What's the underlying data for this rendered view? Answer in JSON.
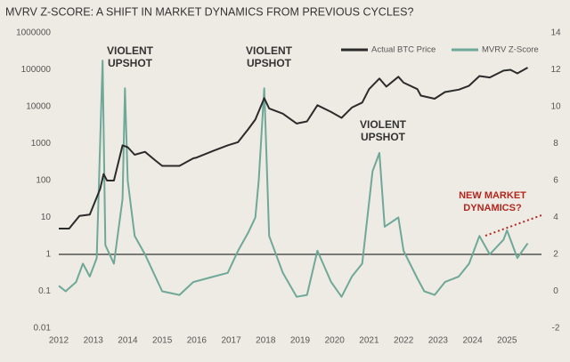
{
  "chart_data": {
    "type": "line",
    "title": "MVRV Z-SCORE: A SHIFT IN MARKET DYNAMICS FROM PREVIOUS CYCLES?",
    "xlim": [
      2012,
      2026
    ],
    "xticks": [
      2012,
      2013,
      2014,
      2015,
      2016,
      2017,
      2018,
      2019,
      2020,
      2021,
      2022,
      2023,
      2024,
      2025
    ],
    "yscale": "log",
    "ylim": [
      0.01,
      1000000
    ],
    "yticks": [
      0.01,
      0.1,
      1,
      10,
      100,
      1000,
      10000,
      100000,
      1000000
    ],
    "y2lim": [
      -2,
      14
    ],
    "y2ticks": [
      -2,
      0,
      2,
      4,
      6,
      8,
      10,
      12,
      14
    ],
    "reference_line": 1,
    "legend": "upper right",
    "annotations": [
      {
        "lines": [
          "VIOLENT",
          "UPSHOT"
        ]
      },
      {
        "lines": [
          "VIOLENT",
          "UPSHOT"
        ]
      },
      {
        "lines": [
          "VIOLENT",
          "UPSHOT"
        ]
      },
      {
        "lines": [
          "NEW MARKET",
          "DYNAMICS?"
        ],
        "color": "#b3261e"
      }
    ],
    "series": [
      {
        "name": "Actual BTC Price",
        "color": "#2b2b2b",
        "x": [
          2012.0,
          2012.3,
          2012.6,
          2012.9,
          2013.2,
          2013.3,
          2013.4,
          2013.6,
          2013.85,
          2014.0,
          2014.2,
          2014.5,
          2014.8,
          2015.0,
          2015.5,
          2015.9,
          2016.0,
          2016.5,
          2016.9,
          2017.2,
          2017.5,
          2017.7,
          2017.96,
          2018.1,
          2018.5,
          2018.9,
          2019.2,
          2019.5,
          2019.9,
          2020.2,
          2020.5,
          2020.8,
          2021.0,
          2021.3,
          2021.5,
          2021.85,
          2022.0,
          2022.4,
          2022.5,
          2022.9,
          2023.2,
          2023.6,
          2023.9,
          2024.2,
          2024.5,
          2024.9,
          2025.1,
          2025.3,
          2025.6
        ],
        "values": [
          5,
          5,
          11,
          12,
          60,
          150,
          100,
          100,
          900,
          800,
          500,
          600,
          350,
          250,
          250,
          400,
          420,
          650,
          900,
          1100,
          2500,
          4500,
          17000,
          9000,
          6500,
          3500,
          4000,
          11000,
          7200,
          5000,
          9500,
          13000,
          30000,
          58000,
          35000,
          65000,
          45000,
          30000,
          20000,
          16500,
          25000,
          29000,
          37000,
          68000,
          62000,
          95000,
          100000,
          80000,
          115000
        ]
      },
      {
        "name": "MVRV Z-Score",
        "color": "#6fa898",
        "axis": "y2",
        "x": [
          2012.0,
          2012.2,
          2012.5,
          2012.7,
          2012.9,
          2013.1,
          2013.27,
          2013.35,
          2013.6,
          2013.85,
          2013.92,
          2014.0,
          2014.2,
          2014.5,
          2014.8,
          2015.0,
          2015.5,
          2015.9,
          2016.5,
          2016.9,
          2017.2,
          2017.5,
          2017.7,
          2017.8,
          2017.96,
          2018.1,
          2018.5,
          2018.9,
          2019.2,
          2019.5,
          2019.9,
          2020.2,
          2020.5,
          2020.8,
          2021.1,
          2021.3,
          2021.45,
          2021.85,
          2022.0,
          2022.4,
          2022.6,
          2022.9,
          2023.2,
          2023.6,
          2023.9,
          2024.2,
          2024.5,
          2024.9,
          2025.0,
          2025.3,
          2025.6
        ],
        "values": [
          0.3,
          0.0,
          0.5,
          1.5,
          0.8,
          1.8,
          12.5,
          2.5,
          1.5,
          5,
          11,
          6,
          3,
          2,
          0.8,
          0,
          -0.2,
          0.5,
          0.8,
          1,
          2.2,
          3.2,
          4,
          6,
          11,
          3,
          1,
          -0.3,
          -0.2,
          2.2,
          0.5,
          -0.3,
          0.8,
          1.5,
          6.5,
          7.5,
          3.5,
          4,
          2.2,
          0.7,
          0,
          -0.2,
          0.5,
          0.8,
          1.5,
          3.0,
          2.0,
          2.8,
          3.3,
          1.8,
          2.6
        ]
      }
    ]
  }
}
